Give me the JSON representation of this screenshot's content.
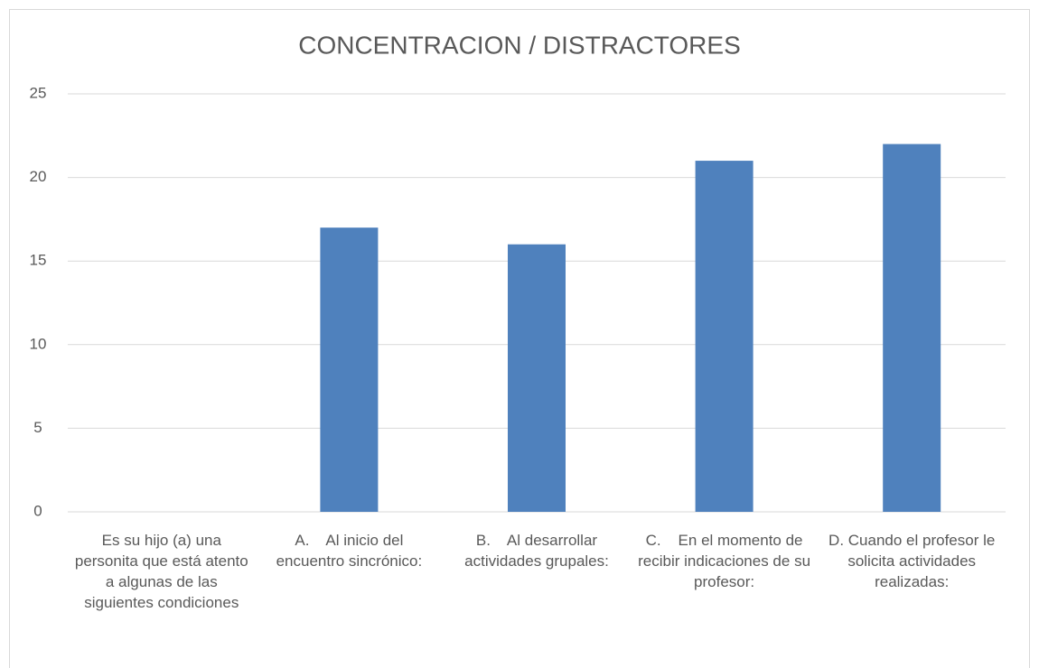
{
  "chart_data": {
    "type": "bar",
    "title": "CONCENTRACION / DISTRACTORES",
    "categories": [
      "Es su hijo (a) una personita que está atento a algunas de las siguientes condiciones",
      "A.    Al inicio del encuentro sincrónico:",
      "B.    Al desarrollar actividades grupales:",
      "C.    En el momento de recibir indicaciones de su profesor:",
      "D. Cuando el profesor le solicita actividades realizadas:"
    ],
    "values": [
      null,
      17,
      16,
      21,
      22
    ],
    "color": "#4f81bd",
    "ylim": [
      0,
      25
    ],
    "yticks": [
      0,
      5,
      10,
      15,
      20,
      25
    ],
    "grid": true
  }
}
